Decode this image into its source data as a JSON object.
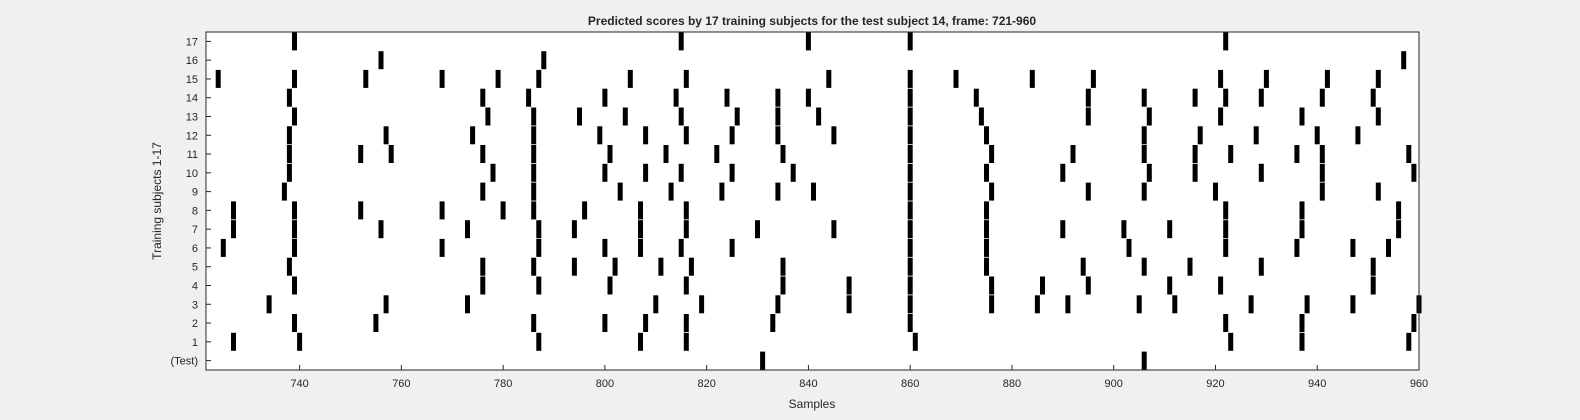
{
  "chart_data": {
    "type": "raster",
    "title": "Predicted scores by 17 training subjects for the test subject 14, frame: 721-960",
    "xlabel": "Samples",
    "ylabel": "Training subjects 1-17",
    "xlim": [
      721,
      960
    ],
    "x_ticks": [
      740,
      760,
      780,
      800,
      820,
      840,
      860,
      880,
      900,
      920,
      940,
      960
    ],
    "y_tick_labels": [
      "(Test)",
      "1",
      "2",
      "3",
      "4",
      "5",
      "6",
      "7",
      "8",
      "9",
      "10",
      "11",
      "12",
      "13",
      "14",
      "15",
      "16",
      "17"
    ],
    "grid": false,
    "mark_color": "#000000",
    "series": [
      {
        "name": "(Test)",
        "spikes": [
          831,
          906
        ]
      },
      {
        "name": "1",
        "spikes": [
          727,
          740,
          787,
          807,
          816,
          861,
          923,
          937,
          958
        ]
      },
      {
        "name": "2",
        "spikes": [
          739,
          755,
          786,
          800,
          808,
          816,
          833,
          860,
          922,
          937,
          959
        ]
      },
      {
        "name": "3",
        "spikes": [
          734,
          757,
          773,
          810,
          819,
          834,
          848,
          860,
          876,
          885,
          891,
          905,
          912,
          927,
          938,
          947,
          960
        ]
      },
      {
        "name": "4",
        "spikes": [
          739,
          776,
          787,
          801,
          816,
          835,
          848,
          860,
          876,
          886,
          895,
          911,
          921,
          951
        ]
      },
      {
        "name": "5",
        "spikes": [
          738,
          776,
          786,
          794,
          802,
          811,
          817,
          835,
          860,
          875,
          894,
          906,
          915,
          929,
          951
        ]
      },
      {
        "name": "6",
        "spikes": [
          725,
          739,
          768,
          787,
          800,
          807,
          815,
          825,
          860,
          875,
          903,
          922,
          936,
          947,
          954
        ]
      },
      {
        "name": "7",
        "spikes": [
          727,
          739,
          756,
          773,
          787,
          794,
          807,
          816,
          830,
          845,
          860,
          875,
          890,
          902,
          911,
          922,
          937,
          956
        ]
      },
      {
        "name": "8",
        "spikes": [
          727,
          739,
          752,
          768,
          780,
          786,
          796,
          807,
          816,
          860,
          875,
          922,
          937,
          956
        ]
      },
      {
        "name": "9",
        "spikes": [
          737,
          776,
          786,
          803,
          813,
          823,
          834,
          841,
          860,
          876,
          895,
          906,
          920,
          941,
          952
        ]
      },
      {
        "name": "10",
        "spikes": [
          738,
          778,
          786,
          800,
          808,
          815,
          825,
          837,
          860,
          875,
          890,
          907,
          916,
          929,
          941,
          959
        ]
      },
      {
        "name": "11",
        "spikes": [
          738,
          752,
          758,
          776,
          786,
          801,
          812,
          822,
          835,
          860,
          876,
          892,
          906,
          916,
          923,
          936,
          941,
          958
        ]
      },
      {
        "name": "12",
        "spikes": [
          738,
          757,
          774,
          786,
          799,
          808,
          816,
          825,
          834,
          845,
          860,
          875,
          906,
          917,
          928,
          940,
          948
        ]
      },
      {
        "name": "13",
        "spikes": [
          739,
          777,
          786,
          795,
          804,
          815,
          826,
          834,
          842,
          860,
          874,
          895,
          907,
          921,
          937,
          952
        ]
      },
      {
        "name": "14",
        "spikes": [
          738,
          776,
          785,
          800,
          814,
          824,
          834,
          840,
          860,
          873,
          895,
          906,
          916,
          922,
          929,
          941,
          951
        ]
      },
      {
        "name": "15",
        "spikes": [
          724,
          739,
          753,
          768,
          779,
          787,
          805,
          816,
          844,
          860,
          869,
          884,
          896,
          921,
          930,
          942,
          952
        ]
      },
      {
        "name": "16",
        "spikes": [
          756,
          788,
          957
        ]
      },
      {
        "name": "17",
        "spikes": [
          739,
          815,
          840,
          860,
          922
        ]
      }
    ]
  }
}
